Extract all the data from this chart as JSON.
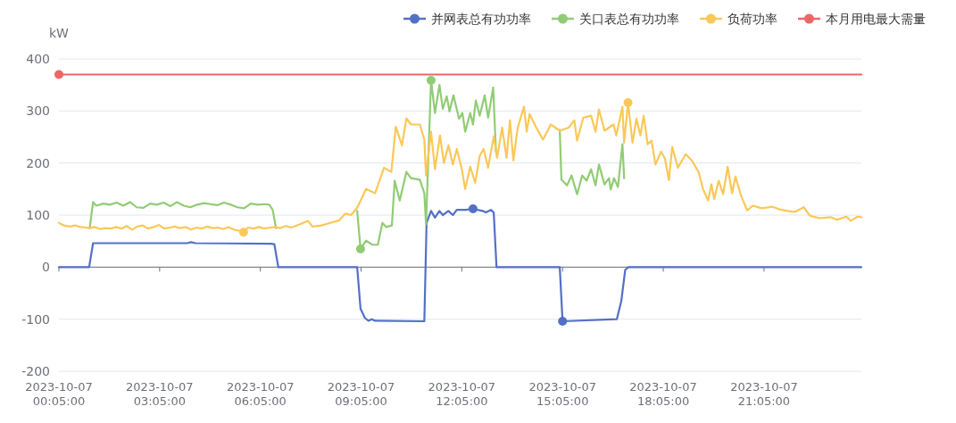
{
  "chart_data": {
    "type": "line",
    "ylabel": "kW",
    "legend": "top right",
    "grid": "y",
    "xlim": [
      "2023-10-07T00:05",
      "2023-10-07T23:59"
    ],
    "ylim": [
      -200,
      400
    ],
    "yticks": [
      -200,
      -100,
      0,
      100,
      200,
      300,
      400
    ],
    "xticks": [
      {
        "value": "2023-10-07T00:05",
        "label": "2023-10-07\n00:05:00"
      },
      {
        "value": "2023-10-07T03:05",
        "label": "2023-10-07\n03:05:00"
      },
      {
        "value": "2023-10-07T06:05",
        "label": "2023-10-07\n06:05:00"
      },
      {
        "value": "2023-10-07T09:05",
        "label": "2023-10-07\n09:05:00"
      },
      {
        "value": "2023-10-07T12:05",
        "label": "2023-10-07\n12:05:00"
      },
      {
        "value": "2023-10-07T15:05",
        "label": "2023-10-07\n15:05:00"
      },
      {
        "value": "2023-10-07T18:05",
        "label": "2023-10-07\n18:05:00"
      },
      {
        "value": "2023-10-07T21:05",
        "label": "2023-10-07\n21:05:00"
      }
    ],
    "series": [
      {
        "name": "并网表总有功功率",
        "color": "#5470c6",
        "x": [
          "2023-10-07T00:05",
          "2023-10-07T00:59",
          "2023-10-07T01:06",
          "2023-10-07T03:54",
          "2023-10-07T04:01",
          "2023-10-07T04:09",
          "2023-10-07T06:24",
          "2023-10-07T06:30",
          "2023-10-07T06:37",
          "2023-10-07T08:58",
          "2023-10-07T09:04",
          "2023-10-07T09:12",
          "2023-10-07T09:18",
          "2023-10-07T09:24",
          "2023-10-07T09:30",
          "2023-10-07T10:58",
          "2023-10-07T11:02",
          "2023-10-07T11:10",
          "2023-10-07T11:17",
          "2023-10-07T11:25",
          "2023-10-07T11:31",
          "2023-10-07T11:41",
          "2023-10-07T11:49",
          "2023-10-07T11:56",
          "2023-10-07T12:12",
          "2023-10-07T12:25",
          "2023-10-07T12:42",
          "2023-10-07T12:48",
          "2023-10-07T12:57",
          "2023-10-07T13:02",
          "2023-10-07T13:07",
          "2023-10-07T15:00",
          "2023-10-07T15:05",
          "2023-10-07T16:42",
          "2023-10-07T16:50",
          "2023-10-07T16:57",
          "2023-10-07T17:03",
          "2023-10-07T23:59"
        ],
        "values": [
          0,
          0,
          46,
          46,
          48,
          46,
          45,
          44,
          0,
          0,
          -80,
          -98,
          -103,
          -100,
          -103,
          -104,
          85,
          108,
          95,
          108,
          100,
          108,
          100,
          110,
          110,
          112,
          108,
          105,
          110,
          105,
          0,
          0,
          -104,
          -100,
          -65,
          -5,
          0,
          0
        ]
      },
      {
        "name": "关口表总有功功率",
        "color": "#91cc75",
        "x": [
          "2023-10-07T01:00",
          "2023-10-07T01:06",
          "2023-10-07T01:12",
          "2023-10-07T01:24",
          "2023-10-07T01:36",
          "2023-10-07T01:48",
          "2023-10-07T02:00",
          "2023-10-07T02:12",
          "2023-10-07T02:24",
          "2023-10-07T02:36",
          "2023-10-07T02:48",
          "2023-10-07T03:00",
          "2023-10-07T03:12",
          "2023-10-07T03:24",
          "2023-10-07T03:36",
          "2023-10-07T03:48",
          "2023-10-07T04:00",
          "2023-10-07T04:12",
          "2023-10-07T04:24",
          "2023-10-07T04:36",
          "2023-10-07T04:48",
          "2023-10-07T05:00",
          "2023-10-07T05:12",
          "2023-10-07T05:24",
          "2023-10-07T05:36",
          "2023-10-07T05:48",
          "2023-10-07T06:00",
          "2023-10-07T06:12",
          "2023-10-07T06:21",
          "2023-10-07T06:27",
          "2023-10-07T06:33",
          null,
          "2023-10-07T08:58",
          "2023-10-07T09:04",
          "2023-10-07T09:14",
          "2023-10-07T09:25",
          "2023-10-07T09:35",
          "2023-10-07T09:43",
          "2023-10-07T09:50",
          "2023-10-07T10:00",
          "2023-10-07T10:05",
          "2023-10-07T10:14",
          "2023-10-07T10:26",
          "2023-10-07T10:34",
          "2023-10-07T10:50",
          "2023-10-07T10:58",
          "2023-10-07T11:01",
          "2023-10-07T11:10",
          "2023-10-07T11:17",
          "2023-10-07T11:25",
          "2023-10-07T11:31",
          "2023-10-07T11:38",
          "2023-10-07T11:43",
          "2023-10-07T11:50",
          "2023-10-07T12:00",
          "2023-10-07T12:06",
          "2023-10-07T12:11",
          "2023-10-07T12:20",
          "2023-10-07T12:25",
          "2023-10-07T12:30",
          "2023-10-07T12:37",
          "2023-10-07T12:46",
          "2023-10-07T12:52",
          "2023-10-07T13:01",
          "2023-10-07T13:06",
          null,
          "2023-10-07T15:00",
          "2023-10-07T15:03",
          "2023-10-07T15:05",
          "2023-10-07T15:13",
          "2023-10-07T15:21",
          "2023-10-07T15:31",
          "2023-10-07T15:40",
          "2023-10-07T15:48",
          "2023-10-07T15:56",
          "2023-10-07T16:04",
          "2023-10-07T16:10",
          "2023-10-07T16:20",
          "2023-10-07T16:28",
          "2023-10-07T16:31",
          "2023-10-07T16:37",
          "2023-10-07T16:44",
          "2023-10-07T16:52",
          "2023-10-07T16:55"
        ],
        "values": [
          75,
          125,
          118,
          122,
          120,
          124,
          118,
          125,
          115,
          114,
          122,
          120,
          124,
          117,
          125,
          118,
          115,
          120,
          123,
          121,
          119,
          124,
          120,
          115,
          113,
          122,
          120,
          121,
          120,
          110,
          75,
          null,
          108,
          35,
          51,
          43,
          43,
          85,
          77,
          80,
          166,
          128,
          183,
          171,
          168,
          142,
          82,
          359,
          296,
          350,
          304,
          328,
          299,
          330,
          285,
          296,
          260,
          296,
          274,
          320,
          291,
          330,
          287,
          345,
          222,
          null,
          264,
          168,
          166,
          157,
          176,
          140,
          176,
          166,
          188,
          157,
          197,
          159,
          171,
          149,
          171,
          154,
          236,
          171
        ]
      },
      {
        "name": "负荷功率",
        "color": "#fac858",
        "x": [
          "2023-10-07T00:05",
          "2023-10-07T00:14",
          "2023-10-07T00:24",
          "2023-10-07T00:34",
          "2023-10-07T00:43",
          "2023-10-07T00:53",
          "2023-10-07T00:59",
          "2023-10-07T01:09",
          "2023-10-07T01:19",
          "2023-10-07T01:28",
          "2023-10-07T01:38",
          "2023-10-07T01:47",
          "2023-10-07T01:57",
          "2023-10-07T02:06",
          "2023-10-07T02:16",
          "2023-10-07T02:25",
          "2023-10-07T02:35",
          "2023-10-07T02:44",
          "2023-10-07T02:54",
          "2023-10-07T03:04",
          "2023-10-07T03:13",
          "2023-10-07T03:23",
          "2023-10-07T03:32",
          "2023-10-07T03:42",
          "2023-10-07T03:52",
          "2023-10-07T04:01",
          "2023-10-07T04:11",
          "2023-10-07T04:20",
          "2023-10-07T04:30",
          "2023-10-07T04:40",
          "2023-10-07T04:49",
          "2023-10-07T04:59",
          "2023-10-07T05:08",
          "2023-10-07T05:18",
          "2023-10-07T05:27",
          "2023-10-07T05:35",
          "2023-10-07T05:43",
          "2023-10-07T05:53",
          "2023-10-07T06:02",
          "2023-10-07T06:12",
          "2023-10-07T06:22",
          "2023-10-07T06:31",
          "2023-10-07T06:41",
          "2023-10-07T06:50",
          "2023-10-07T07:00",
          "2023-10-07T07:10",
          "2023-10-07T07:30",
          "2023-10-07T07:38",
          "2023-10-07T07:54",
          "2023-10-07T08:10",
          "2023-10-07T08:26",
          "2023-10-07T08:37",
          "2023-10-07T08:47",
          "2023-10-07T08:58",
          "2023-10-07T09:14",
          "2023-10-07T09:30",
          "2023-10-07T09:46",
          "2023-10-07T09:59",
          "2023-10-07T10:07",
          "2023-10-07T10:18",
          "2023-10-07T10:26",
          "2023-10-07T10:34",
          "2023-10-07T10:50",
          "2023-10-07T10:58",
          "2023-10-07T11:01",
          "2023-10-07T11:10",
          "2023-10-07T11:17",
          "2023-10-07T11:26",
          "2023-10-07T11:33",
          "2023-10-07T11:41",
          "2023-10-07T11:49",
          "2023-10-07T11:56",
          "2023-10-07T12:05",
          "2023-10-07T12:11",
          "2023-10-07T12:20",
          "2023-10-07T12:29",
          "2023-10-07T12:37",
          "2023-10-07T12:44",
          "2023-10-07T12:52",
          "2023-10-07T13:02",
          "2023-10-07T13:08",
          "2023-10-07T13:17",
          "2023-10-07T13:25",
          "2023-10-07T13:31",
          "2023-10-07T13:37",
          "2023-10-07T13:45",
          "2023-10-07T13:56",
          "2023-10-07T14:01",
          "2023-10-07T14:06",
          "2023-10-07T14:17",
          "2023-10-07T14:30",
          "2023-10-07T14:44",
          "2023-10-07T15:00",
          "2023-10-07T15:16",
          "2023-10-07T15:26",
          "2023-10-07T15:31",
          "2023-10-07T15:42",
          "2023-10-07T15:56",
          "2023-10-07T16:04",
          "2023-10-07T16:10",
          "2023-10-07T16:20",
          "2023-10-07T16:36",
          "2023-10-07T16:41",
          "2023-10-07T16:52",
          "2023-10-07T16:55",
          "2023-10-07T17:02",
          "2023-10-07T17:10",
          "2023-10-07T17:17",
          "2023-10-07T17:24",
          "2023-10-07T17:30",
          "2023-10-07T17:37",
          "2023-10-07T17:44",
          "2023-10-07T17:51",
          "2023-10-07T18:01",
          "2023-10-07T18:08",
          "2023-10-07T18:15",
          "2023-10-07T18:21",
          "2023-10-07T18:31",
          "2023-10-07T18:45",
          "2023-10-07T18:56",
          "2023-10-07T19:08",
          "2023-10-07T19:16",
          "2023-10-07T19:25",
          "2023-10-07T19:31",
          "2023-10-07T19:36",
          "2023-10-07T19:44",
          "2023-10-07T19:52",
          "2023-10-07T20:00",
          "2023-10-07T20:08",
          "2023-10-07T20:14",
          "2023-10-07T20:24",
          "2023-10-07T20:35",
          "2023-10-07T20:45",
          "2023-10-07T21:01",
          "2023-10-07T21:20",
          "2023-10-07T21:33",
          "2023-10-07T21:47",
          "2023-10-07T22:00",
          "2023-10-07T22:16",
          "2023-10-07T22:27",
          "2023-10-07T22:44",
          "2023-10-07T23:04",
          "2023-10-07T23:15",
          "2023-10-07T23:32",
          "2023-10-07T23:40",
          "2023-10-07T23:52",
          "2023-10-07T23:59"
        ],
        "values": [
          85,
          80,
          78,
          80,
          77,
          76,
          75,
          77,
          73,
          75,
          74,
          77,
          74,
          79,
          72,
          78,
          80,
          74,
          77,
          81,
          74,
          76,
          78,
          75,
          77,
          72,
          76,
          74,
          78,
          75,
          76,
          73,
          77,
          72,
          70,
          67,
          76,
          74,
          77,
          74,
          76,
          77,
          75,
          79,
          76,
          80,
          89,
          78,
          80,
          85,
          90,
          103,
          100,
          114,
          150,
          142,
          191,
          183,
          270,
          234,
          286,
          274,
          274,
          245,
          176,
          260,
          188,
          253,
          200,
          234,
          197,
          227,
          188,
          150,
          193,
          162,
          214,
          227,
          191,
          251,
          210,
          268,
          210,
          282,
          205,
          268,
          308,
          260,
          294,
          270,
          245,
          274,
          262,
          268,
          282,
          243,
          287,
          291,
          260,
          303,
          262,
          274,
          253,
          308,
          239,
          316,
          239,
          285,
          253,
          291,
          236,
          243,
          197,
          222,
          208,
          167,
          231,
          191,
          217,
          205,
          183,
          150,
          128,
          159,
          131,
          166,
          140,
          193,
          142,
          174,
          137,
          109,
          118,
          113,
          116,
          111,
          108,
          106,
          115,
          99,
          94,
          96,
          91,
          97,
          89,
          97,
          96
        ]
      },
      {
        "name": "本月用电最大需量",
        "color": "#ee6666",
        "x": [
          "2023-10-07T00:05",
          "2023-10-07T23:59"
        ],
        "values": [
          370,
          370
        ]
      },
      {
        "color": "#5470c6",
        "type": "scatter",
        "marker": "circle",
        "x": [
          "2023-10-07T12:25",
          "2023-10-07T15:05"
        ],
        "values": [
          112,
          -104
        ]
      },
      {
        "color": "#91cc75",
        "type": "scatter",
        "marker": "circle",
        "x": [
          "2023-10-07T09:04",
          "2023-10-07T11:10"
        ],
        "values": [
          35,
          359
        ]
      },
      {
        "color": "#fac858",
        "type": "scatter",
        "marker": "circle",
        "x": [
          "2023-10-07T05:35",
          "2023-10-07T17:02"
        ],
        "values": [
          67,
          316
        ]
      },
      {
        "color": "#ee6666",
        "type": "scatter",
        "marker": "circle",
        "x": [
          "2023-10-07T00:05"
        ],
        "values": [
          370
        ]
      }
    ]
  }
}
